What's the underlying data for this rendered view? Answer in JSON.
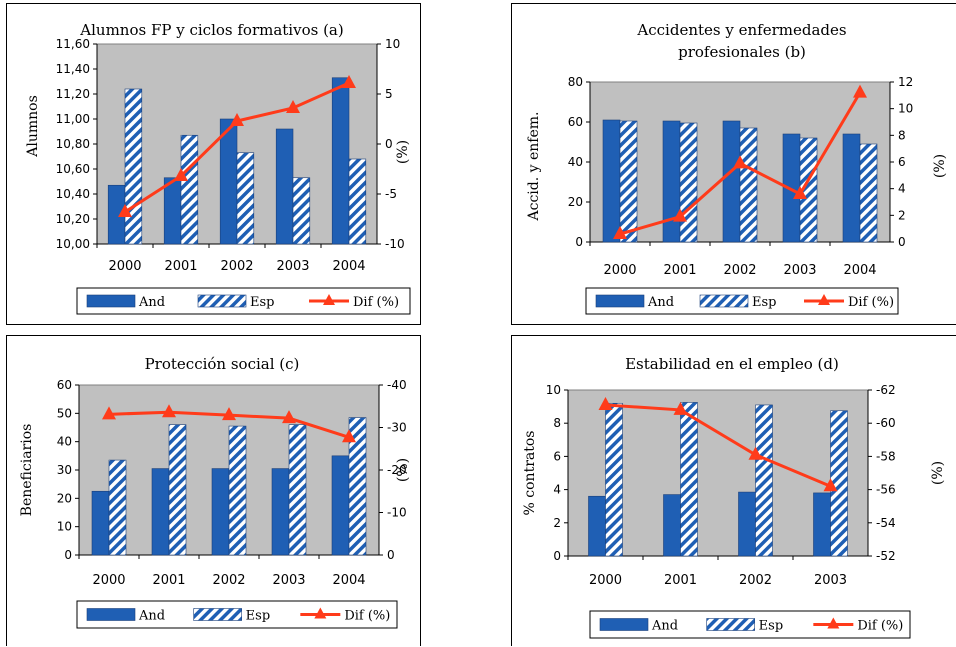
{
  "colors": {
    "and": "#1f5fb4",
    "esp_stripe": "#1f5fb4",
    "dif": "#ff3b1a",
    "plot_bg": "#c0c0c0"
  },
  "chart_data": [
    {
      "id": "a",
      "type": "bar",
      "title_lines": [
        "Alumnos FP y ciclos formativos (a)"
      ],
      "ylabel": "Alumnos",
      "y2label": "(%)",
      "categories": [
        "2000",
        "2001",
        "2002",
        "2003",
        "2004"
      ],
      "ylim": [
        10.0,
        11.6
      ],
      "yticks": [
        "10,00",
        "10,20",
        "10,40",
        "10,60",
        "10,80",
        "11,00",
        "11,20",
        "11,40",
        "11,60"
      ],
      "y2lim": [
        -10,
        10
      ],
      "y2ticks": [
        "-10",
        "-5",
        "0",
        "5",
        "10"
      ],
      "series": [
        {
          "name": "And",
          "kind": "bar",
          "style": "solid",
          "axis": "left",
          "values": [
            10.47,
            10.53,
            11.0,
            10.92,
            11.33
          ]
        },
        {
          "name": "Esp",
          "kind": "bar",
          "style": "hatch",
          "axis": "left",
          "values": [
            11.24,
            10.87,
            10.73,
            10.53,
            10.68
          ]
        },
        {
          "name": "Dif (%)",
          "kind": "line",
          "axis": "right",
          "values": [
            -6.8,
            -3.2,
            2.3,
            3.6,
            6.1
          ]
        }
      ],
      "legend_position": "bottom"
    },
    {
      "id": "b",
      "type": "bar",
      "title_lines": [
        "Accidentes y enfermedades",
        "profesionales (b)"
      ],
      "ylabel": "Accid. y enfem.",
      "y2label": "(%)",
      "categories": [
        "2000",
        "2001",
        "2002",
        "2003",
        "2004"
      ],
      "ylim": [
        0,
        80
      ],
      "yticks": [
        "0",
        "20",
        "40",
        "60",
        "80"
      ],
      "y2lim": [
        0,
        12
      ],
      "y2ticks": [
        "0",
        "2",
        "4",
        "6",
        "8",
        "10",
        "12"
      ],
      "series": [
        {
          "name": "And",
          "kind": "bar",
          "style": "solid",
          "axis": "left",
          "values": [
            61,
            60.5,
            60.5,
            54,
            54
          ]
        },
        {
          "name": "Esp",
          "kind": "bar",
          "style": "hatch",
          "axis": "left",
          "values": [
            60.5,
            59.5,
            57,
            52,
            49
          ]
        },
        {
          "name": "Dif (%)",
          "kind": "line",
          "axis": "right",
          "values": [
            0.6,
            1.9,
            5.9,
            3.6,
            11.2
          ]
        }
      ],
      "legend_position": "bottom"
    },
    {
      "id": "c",
      "type": "bar",
      "title_lines": [
        "Protección social (c)"
      ],
      "ylabel": "Beneficiarios",
      "y2label": "(%)",
      "categories": [
        "2000",
        "2001",
        "2002",
        "2003",
        "2004"
      ],
      "ylim": [
        0,
        60
      ],
      "yticks": [
        "0",
        "10",
        "20",
        "30",
        "40",
        "50",
        "60"
      ],
      "y2lim": [
        0,
        -40
      ],
      "y2ticks": [
        "0",
        "-10",
        "-20",
        "-30",
        "-40"
      ],
      "series": [
        {
          "name": "And",
          "kind": "bar",
          "style": "solid",
          "axis": "left",
          "values": [
            22.5,
            30.5,
            30.5,
            30.5,
            35
          ]
        },
        {
          "name": "Esp",
          "kind": "bar",
          "style": "hatch",
          "axis": "left",
          "values": [
            33.5,
            46,
            45.5,
            46,
            48.5
          ]
        },
        {
          "name": "Dif (%)",
          "kind": "line",
          "axis": "right",
          "values": [
            -33.1,
            -33.6,
            -32.9,
            -32.2,
            -27.7
          ]
        }
      ],
      "legend_position": "bottom"
    },
    {
      "id": "d",
      "type": "bar",
      "title_lines": [
        "Estabilidad en el empleo (d)"
      ],
      "ylabel": "% contratos",
      "y2label": "(%)",
      "categories": [
        "2000",
        "2001",
        "2002",
        "2003"
      ],
      "ylim": [
        0,
        10
      ],
      "yticks": [
        "0",
        "2",
        "4",
        "6",
        "8",
        "10"
      ],
      "y2lim": [
        -52,
        -62
      ],
      "y2ticks": [
        "-52",
        "-54",
        "-56",
        "-58",
        "-60",
        "-62"
      ],
      "series": [
        {
          "name": "And",
          "kind": "bar",
          "style": "solid",
          "axis": "left",
          "values": [
            3.6,
            3.7,
            3.85,
            3.8
          ]
        },
        {
          "name": "Esp",
          "kind": "bar",
          "style": "hatch",
          "axis": "left",
          "values": [
            9.2,
            9.25,
            9.1,
            8.75
          ]
        },
        {
          "name": "Dif (%)",
          "kind": "line",
          "axis": "right",
          "values": [
            -61.1,
            -60.8,
            -58.1,
            -56.2
          ]
        }
      ],
      "legend_position": "bottom"
    }
  ]
}
